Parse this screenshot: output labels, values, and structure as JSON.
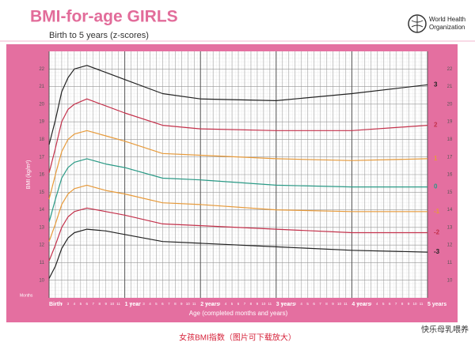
{
  "header": {
    "title": "BMI-for-age GIRLS",
    "subtitle": "Birth to 5 years (z-scores)",
    "org": [
      "World Health",
      "Organization"
    ]
  },
  "chart_data": {
    "type": "line",
    "y_label": "BMI (kg/m²)",
    "x_label": "Age (completed months and years)",
    "x_unit_label": "Months",
    "x": [
      0,
      1,
      2,
      3,
      4,
      6,
      9,
      12,
      18,
      24,
      36,
      48,
      60
    ],
    "series": [
      {
        "name": "3",
        "color": "#222222",
        "values": [
          17.7,
          19.1,
          20.7,
          21.5,
          22.0,
          22.2,
          21.8,
          21.4,
          20.6,
          20.3,
          20.2,
          20.6,
          21.1
        ]
      },
      {
        "name": "2",
        "color": "#c4314b",
        "values": [
          16.1,
          17.5,
          19.0,
          19.7,
          20.0,
          20.3,
          19.9,
          19.5,
          18.8,
          18.6,
          18.5,
          18.5,
          18.8
        ]
      },
      {
        "name": "1",
        "color": "#e79a3a",
        "values": [
          14.6,
          16.0,
          17.3,
          18.0,
          18.3,
          18.5,
          18.2,
          17.9,
          17.2,
          17.1,
          16.9,
          16.8,
          16.9
        ]
      },
      {
        "name": "0",
        "color": "#2a9a86",
        "values": [
          13.3,
          14.6,
          15.8,
          16.4,
          16.7,
          16.9,
          16.6,
          16.4,
          15.8,
          15.7,
          15.4,
          15.3,
          15.3
        ]
      },
      {
        "name": "-1",
        "color": "#e79a3a",
        "values": [
          12.2,
          13.2,
          14.3,
          14.9,
          15.2,
          15.4,
          15.1,
          14.9,
          14.4,
          14.3,
          14.0,
          13.9,
          13.9
        ]
      },
      {
        "name": "-2",
        "color": "#c4314b",
        "values": [
          11.1,
          12.0,
          13.0,
          13.6,
          13.9,
          14.1,
          13.9,
          13.7,
          13.2,
          13.1,
          12.9,
          12.7,
          12.7
        ]
      },
      {
        "name": "-3",
        "color": "#222222",
        "values": [
          10.1,
          10.8,
          11.8,
          12.4,
          12.7,
          12.9,
          12.8,
          12.6,
          12.2,
          12.1,
          11.9,
          11.7,
          11.6
        ]
      }
    ],
    "xlim": [
      0,
      60
    ],
    "ylim": [
      9,
      23
    ],
    "yticks": [
      10,
      11,
      12,
      13,
      14,
      15,
      16,
      17,
      18,
      19,
      20,
      21,
      22
    ],
    "xticks": [
      {
        "value": 0,
        "label": "Birth"
      },
      1,
      2,
      3,
      4,
      5,
      6,
      7,
      8,
      9,
      10,
      11,
      {
        "value": 12,
        "label": "1 year"
      },
      {
        "value": 13,
        "label": "1"
      },
      {
        "value": 14,
        "label": "2"
      },
      {
        "value": 15,
        "label": "3"
      },
      {
        "value": 16,
        "label": "4"
      },
      {
        "value": 17,
        "label": "5"
      },
      {
        "value": 18,
        "label": "6"
      },
      {
        "value": 19,
        "label": "7"
      },
      {
        "value": 20,
        "label": "8"
      },
      {
        "value": 21,
        "label": "9"
      },
      {
        "value": 22,
        "label": "10"
      },
      {
        "value": 23,
        "label": "11"
      },
      {
        "value": 24,
        "label": "2 years"
      },
      {
        "value": 25,
        "label": "1"
      },
      {
        "value": 26,
        "label": "2"
      },
      {
        "value": 27,
        "label": "3"
      },
      {
        "value": 28,
        "label": "4"
      },
      {
        "value": 29,
        "label": "5"
      },
      {
        "value": 30,
        "label": "6"
      },
      {
        "value": 31,
        "label": "7"
      },
      {
        "value": 32,
        "label": "8"
      },
      {
        "value": 33,
        "label": "9"
      },
      {
        "value": 34,
        "label": "10"
      },
      {
        "value": 35,
        "label": "11"
      },
      {
        "value": 36,
        "label": "3 years"
      },
      {
        "value": 37,
        "label": "1"
      },
      {
        "value": 38,
        "label": "2"
      },
      {
        "value": 39,
        "label": "3"
      },
      {
        "value": 40,
        "label": "4"
      },
      {
        "value": 41,
        "label": "5"
      },
      {
        "value": 42,
        "label": "6"
      },
      {
        "value": 43,
        "label": "7"
      },
      {
        "value": 44,
        "label": "8"
      },
      {
        "value": 45,
        "label": "9"
      },
      {
        "value": 46,
        "label": "10"
      },
      {
        "value": 47,
        "label": "11"
      },
      {
        "value": 48,
        "label": "4 years"
      },
      {
        "value": 49,
        "label": "1"
      },
      {
        "value": 50,
        "label": "2"
      },
      {
        "value": 51,
        "label": "3"
      },
      {
        "value": 52,
        "label": "4"
      },
      {
        "value": 53,
        "label": "5"
      },
      {
        "value": 54,
        "label": "6"
      },
      {
        "value": 55,
        "label": "7"
      },
      {
        "value": 56,
        "label": "8"
      },
      {
        "value": 57,
        "label": "9"
      },
      {
        "value": 58,
        "label": "10"
      },
      {
        "value": 59,
        "label": "11"
      },
      {
        "value": 60,
        "label": "5 years"
      }
    ],
    "grid": true
  },
  "footer": {
    "caption": "女孩BMI指数（图片可下载放大）",
    "watermark": "快乐母乳喂养"
  }
}
